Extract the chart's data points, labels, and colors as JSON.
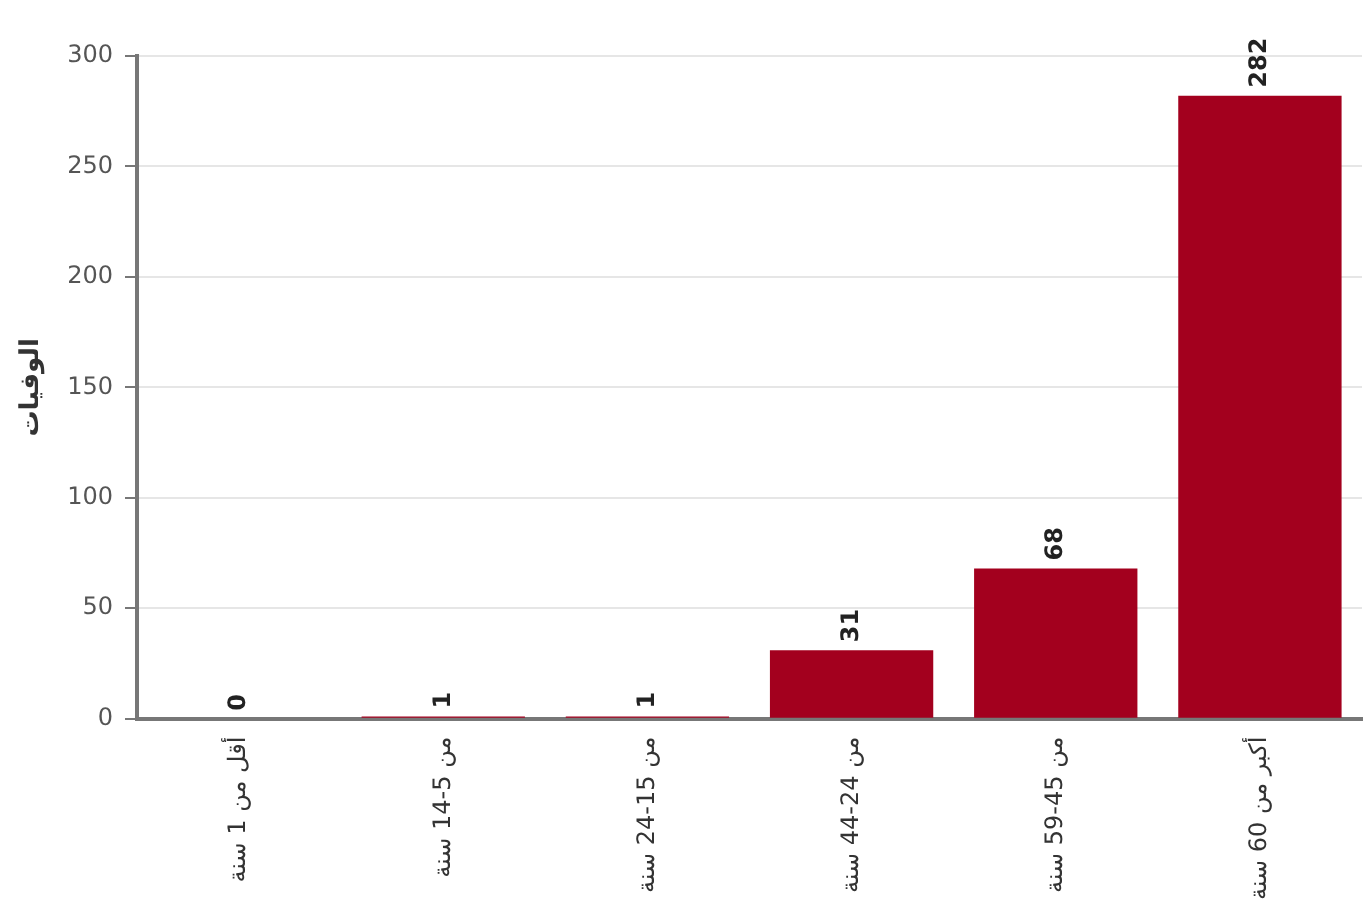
{
  "chart_data": {
    "type": "bar",
    "ylabel": "الوفيات",
    "categories": [
      "أقل من 1 سنة",
      "من 5-14 سنة",
      "من 15-24 سنة",
      "من 24-44 سنة",
      "من 45-59 سنة",
      "أكبر من 60 سنة"
    ],
    "values": [
      0,
      1,
      1,
      31,
      68,
      282
    ],
    "color": "#a3001e",
    "ylim": [
      0,
      300
    ],
    "yticks": [
      0,
      50,
      100,
      150,
      200,
      250,
      300
    ],
    "grid": "y",
    "data_labels": true,
    "legend": false
  }
}
